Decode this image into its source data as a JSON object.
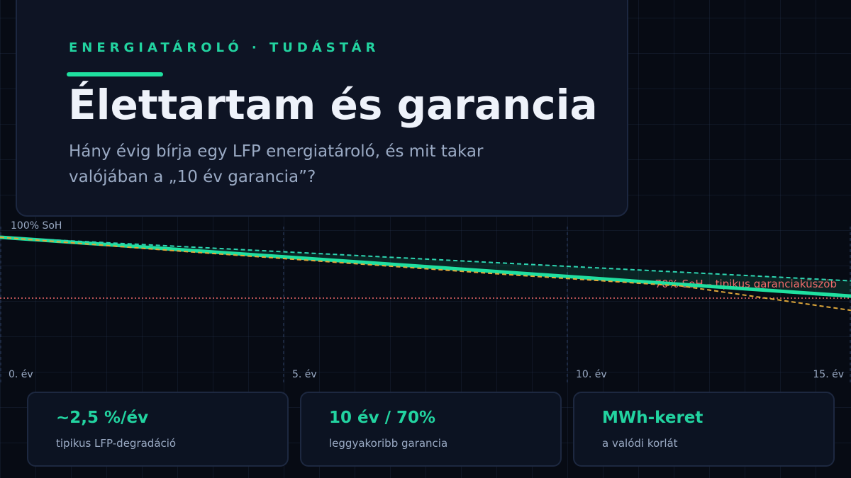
{
  "header": {
    "eyebrow": "ENERGIATÁROLÓ · TUDÁSTÁR",
    "title": "Élettartam és garancia",
    "subtitle": "Hány évig bírja egy LFP energiatároló, és mit takar valójában a „10 év garancia”?"
  },
  "chart_data": {
    "type": "line",
    "title": "",
    "xlabel": "",
    "ylabel": "",
    "xlim": [
      0,
      15
    ],
    "ylim": [
      0,
      100
    ],
    "x_ticks": [
      {
        "value": 0,
        "label": "0. év"
      },
      {
        "value": 5,
        "label": "5. év"
      },
      {
        "value": 10,
        "label": "10. év"
      },
      {
        "value": 15,
        "label": "15. év"
      }
    ],
    "top_label": "100% SoH",
    "threshold": {
      "value": 70,
      "label": "70% SoH – tipikus garanciaküszöb",
      "color": "#f06a6a"
    },
    "series": [
      {
        "name": "",
        "style": "solid",
        "color": "#1fe0a0",
        "x": [
          0,
          15
        ],
        "y": [
          100,
          71
        ]
      },
      {
        "name": "",
        "style": "dashed",
        "color": "#2dd4b0",
        "x": [
          0,
          15
        ],
        "y": [
          100,
          78.5
        ]
      },
      {
        "name": "",
        "style": "dashed",
        "color": "#e0a83a",
        "x": [
          0,
          3,
          6,
          9,
          12,
          15
        ],
        "y": [
          100,
          93.5,
          87.5,
          81.5,
          76,
          64
        ]
      }
    ]
  },
  "cards": [
    {
      "value": "~2,5 %/év",
      "label": "tipikus LFP-degradáció"
    },
    {
      "value": "10 év / 70%",
      "label": "leggyakoribb garancia"
    },
    {
      "value": "MWh-keret",
      "label": "a valódi korlát"
    }
  ]
}
